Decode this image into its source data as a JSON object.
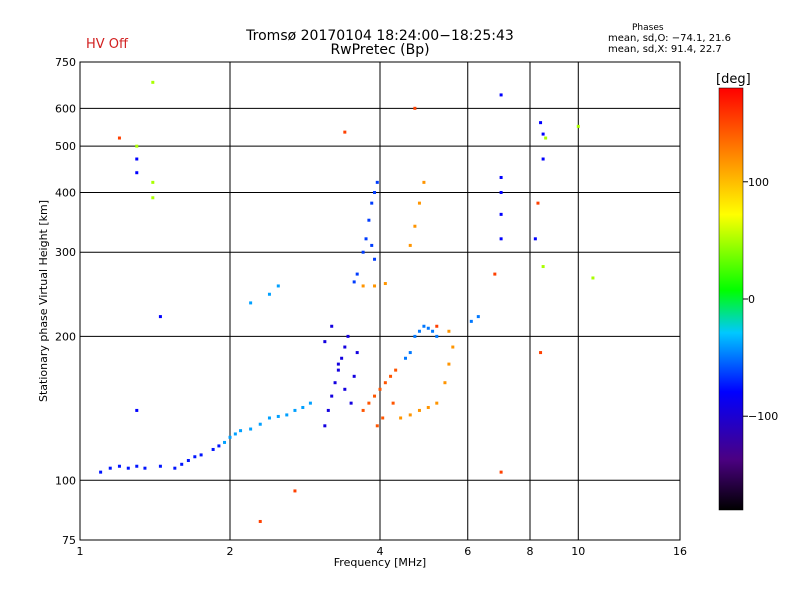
{
  "header": {
    "title_line1": "Tromsø 20170104 18:24:00−18:25:43",
    "title_line2": "RwPretec (Bp)",
    "hv_status": "HV Off",
    "stats_title": "Phases",
    "stats_o": "mean, sd,O: −74.1, 21.6",
    "stats_x": "mean, sd,X:  91.4, 22.7"
  },
  "chart_data": {
    "type": "scatter",
    "title": "Tromsø 20170104 18:24:00−18:25:43",
    "subtitle": "RwPretec (Bp)",
    "xlabel": "Frequency [MHz]",
    "ylabel": "Stationary phase Virtual Height [km]",
    "x_scale": "log",
    "y_scale": "log",
    "xlim": [
      1,
      16
    ],
    "ylim": [
      75,
      750
    ],
    "x_ticks": [
      1,
      2,
      4,
      6,
      8,
      10,
      16
    ],
    "x_tick_labels": [
      "1",
      "2",
      "4",
      "6",
      "8",
      "10",
      "16"
    ],
    "y_ticks": [
      75,
      100,
      200,
      300,
      400,
      500,
      600,
      750
    ],
    "y_tick_labels": [
      "75",
      "100",
      "200",
      "300",
      "400",
      "500",
      "600",
      "750"
    ],
    "grid": true,
    "colorbar": {
      "label": "[deg]",
      "range": [
        -180,
        180
      ],
      "ticks": [
        -100,
        0,
        100
      ],
      "tick_labels": [
        "−100",
        "0",
        "100"
      ],
      "colors": [
        "#000000",
        "#4b0082",
        "#0000ff",
        "#00c8ff",
        "#00ff00",
        "#ffff00",
        "#ff8000",
        "#ff0000"
      ]
    },
    "series": [
      {
        "phase": -95,
        "points": [
          [
            1.1,
            104
          ],
          [
            1.15,
            106
          ],
          [
            1.2,
            107
          ],
          [
            1.25,
            106
          ],
          [
            1.3,
            107
          ],
          [
            1.35,
            106
          ],
          [
            1.45,
            107
          ],
          [
            1.55,
            106
          ],
          [
            1.6,
            108
          ],
          [
            1.65,
            110
          ],
          [
            1.7,
            112
          ],
          [
            1.75,
            113
          ],
          [
            1.85,
            116
          ],
          [
            1.9,
            118
          ]
        ]
      },
      {
        "phase": -60,
        "points": [
          [
            1.95,
            120
          ],
          [
            2.0,
            123
          ],
          [
            2.05,
            125
          ],
          [
            2.1,
            127
          ],
          [
            2.2,
            128
          ],
          [
            2.3,
            131
          ],
          [
            2.4,
            135
          ],
          [
            2.5,
            136
          ],
          [
            2.6,
            137
          ],
          [
            2.7,
            140
          ],
          [
            2.8,
            142
          ],
          [
            2.9,
            145
          ],
          [
            2.2,
            235
          ],
          [
            2.4,
            245
          ],
          [
            2.5,
            255
          ]
        ]
      },
      {
        "phase": -110,
        "points": [
          [
            3.1,
            130
          ],
          [
            3.15,
            140
          ],
          [
            3.2,
            150
          ],
          [
            3.25,
            160
          ],
          [
            3.3,
            170
          ],
          [
            3.35,
            180
          ],
          [
            3.4,
            190
          ],
          [
            3.45,
            200
          ],
          [
            3.2,
            210
          ],
          [
            3.3,
            175
          ],
          [
            3.4,
            155
          ],
          [
            3.5,
            145
          ],
          [
            3.55,
            165
          ],
          [
            3.6,
            185
          ],
          [
            3.1,
            195
          ]
        ]
      },
      {
        "phase": -85,
        "points": [
          [
            3.55,
            260
          ],
          [
            3.6,
            270
          ],
          [
            3.7,
            300
          ],
          [
            3.75,
            320
          ],
          [
            3.8,
            350
          ],
          [
            3.85,
            380
          ],
          [
            3.9,
            400
          ],
          [
            3.95,
            420
          ],
          [
            3.85,
            310
          ],
          [
            3.9,
            290
          ]
        ]
      },
      {
        "phase": 140,
        "points": [
          [
            3.7,
            140
          ],
          [
            3.8,
            145
          ],
          [
            3.9,
            150
          ],
          [
            4.0,
            155
          ],
          [
            4.1,
            160
          ],
          [
            4.2,
            165
          ],
          [
            4.3,
            170
          ],
          [
            3.95,
            130
          ],
          [
            4.05,
            135
          ],
          [
            4.25,
            145
          ]
        ]
      },
      {
        "phase": 110,
        "points": [
          [
            4.4,
            135
          ],
          [
            4.6,
            137
          ],
          [
            4.8,
            140
          ],
          [
            5.0,
            142
          ],
          [
            5.2,
            145
          ],
          [
            5.4,
            160
          ],
          [
            5.5,
            175
          ],
          [
            5.6,
            190
          ],
          [
            5.5,
            205
          ],
          [
            4.6,
            310
          ],
          [
            4.7,
            340
          ],
          [
            4.8,
            380
          ],
          [
            4.9,
            420
          ],
          [
            3.7,
            255
          ],
          [
            3.9,
            255
          ],
          [
            4.1,
            258
          ]
        ]
      },
      {
        "phase": -70,
        "points": [
          [
            4.7,
            200
          ],
          [
            4.8,
            205
          ],
          [
            4.9,
            210
          ],
          [
            5.0,
            208
          ],
          [
            5.1,
            205
          ],
          [
            5.2,
            200
          ],
          [
            4.5,
            180
          ],
          [
            4.6,
            185
          ],
          [
            6.1,
            215
          ],
          [
            6.3,
            220
          ]
        ]
      },
      {
        "phase": -100,
        "points": [
          [
            7.0,
            640
          ],
          [
            7.0,
            430
          ],
          [
            7.0,
            400
          ],
          [
            7.0,
            360
          ],
          [
            7.0,
            320
          ],
          [
            8.4,
            560
          ],
          [
            8.5,
            530
          ],
          [
            8.5,
            470
          ],
          [
            8.2,
            320
          ],
          [
            1.3,
            470
          ],
          [
            1.3,
            440
          ],
          [
            1.45,
            220
          ],
          [
            1.3,
            140
          ]
        ]
      },
      {
        "phase": 40,
        "points": [
          [
            1.4,
            680
          ],
          [
            1.4,
            420
          ],
          [
            1.4,
            390
          ],
          [
            1.3,
            500
          ],
          [
            10.0,
            550
          ],
          [
            10.7,
            265
          ],
          [
            8.5,
            280
          ],
          [
            8.6,
            520
          ]
        ]
      },
      {
        "phase": 150,
        "points": [
          [
            1.2,
            520
          ],
          [
            2.3,
            82
          ],
          [
            2.7,
            95
          ],
          [
            3.4,
            535
          ],
          [
            4.7,
            600
          ],
          [
            5.2,
            210
          ],
          [
            7.0,
            104
          ],
          [
            8.3,
            380
          ],
          [
            8.4,
            185
          ],
          [
            6.8,
            270
          ]
        ]
      }
    ]
  }
}
